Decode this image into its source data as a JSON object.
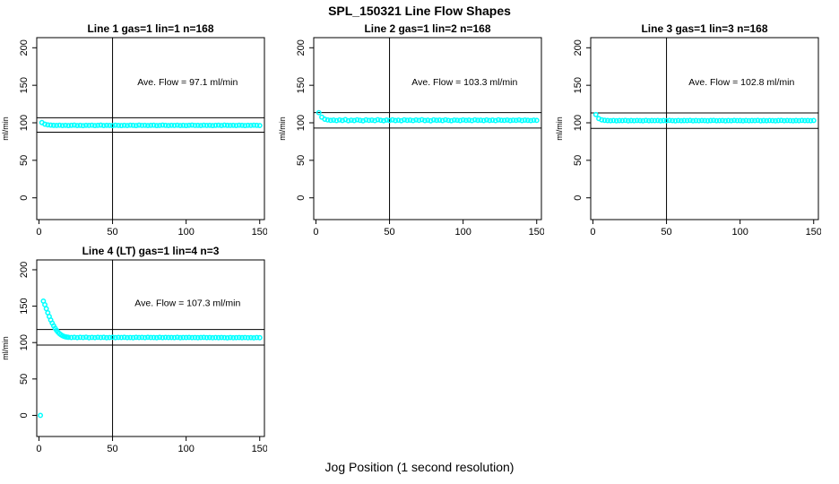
{
  "page": {
    "title": "SPL_150321  Line Flow Shapes",
    "xlabel": "Jog Position (1 second resolution)",
    "background_color": "#ffffff",
    "point_color": "#00ffff",
    "axis_color": "#000000"
  },
  "chart_data": [
    {
      "type": "scatter",
      "title": "Line 1 gas=1 lin=1 n=168",
      "annotation": "Ave. Flow =  97.1  ml/min",
      "ave_flow_ml_min": 97.1,
      "ylabel": "ml/min",
      "xlim": [
        0,
        150
      ],
      "ylim": [
        0,
        200
      ],
      "xticks": [
        0,
        50,
        100,
        150
      ],
      "yticks": [
        0,
        50,
        100,
        150,
        200
      ],
      "vline_x": 50,
      "hlines": [
        87.4,
        106.8
      ],
      "grid": false,
      "x": [
        2,
        4,
        6,
        8,
        10,
        12,
        14,
        16,
        18,
        20,
        22,
        24,
        26,
        28,
        30,
        32,
        34,
        36,
        38,
        40,
        42,
        44,
        46,
        48,
        50,
        52,
        54,
        56,
        58,
        60,
        62,
        64,
        66,
        68,
        70,
        72,
        74,
        76,
        78,
        80,
        82,
        84,
        86,
        88,
        90,
        92,
        94,
        96,
        98,
        100,
        102,
        104,
        106,
        108,
        110,
        112,
        114,
        116,
        118,
        120,
        122,
        124,
        126,
        128,
        130,
        132,
        134,
        136,
        138,
        140,
        142,
        144,
        146,
        148,
        150
      ],
      "y": [
        100.3,
        98.2,
        97.3,
        96.9,
        96.6,
        96.5,
        96.8,
        96.4,
        96.7,
        96.3,
        96.6,
        96.9,
        96.4,
        96.6,
        96.2,
        96.7,
        96.5,
        96.8,
        96.3,
        96.6,
        96.9,
        96.4,
        96.7,
        96.5,
        96.2,
        96.8,
        96.5,
        96.3,
        96.7,
        96.4,
        96.8,
        96.6,
        96.3,
        96.9,
        96.5,
        96.7,
        96.4,
        96.6,
        96.8,
        96.3,
        96.5,
        96.9,
        96.6,
        96.4,
        96.7,
        96.5,
        96.8,
        96.4,
        96.6,
        96.3,
        96.7,
        96.9,
        96.5,
        96.6,
        96.4,
        96.8,
        96.5,
        96.7,
        96.3,
        96.6,
        96.8,
        96.4,
        96.9,
        96.6,
        96.5,
        96.7,
        96.4,
        96.8,
        96.6,
        96.3,
        96.7,
        96.5,
        96.8,
        96.6,
        96.4
      ]
    },
    {
      "type": "scatter",
      "title": "Line 2 gas=1 lin=2 n=168",
      "annotation": "Ave. Flow =  103.3  ml/min",
      "ave_flow_ml_min": 103.3,
      "ylabel": "ml/min",
      "xlim": [
        0,
        150
      ],
      "ylim": [
        0,
        200
      ],
      "xticks": [
        0,
        50,
        100,
        150
      ],
      "yticks": [
        0,
        50,
        100,
        150,
        200
      ],
      "vline_x": 50,
      "hlines": [
        93.0,
        113.6
      ],
      "grid": false,
      "x": [
        2,
        4,
        6,
        8,
        10,
        12,
        14,
        16,
        18,
        20,
        22,
        24,
        26,
        28,
        30,
        32,
        34,
        36,
        38,
        40,
        42,
        44,
        46,
        48,
        50,
        52,
        54,
        56,
        58,
        60,
        62,
        64,
        66,
        68,
        70,
        72,
        74,
        76,
        78,
        80,
        82,
        84,
        86,
        88,
        90,
        92,
        94,
        96,
        98,
        100,
        102,
        104,
        106,
        108,
        110,
        112,
        114,
        116,
        118,
        120,
        122,
        124,
        126,
        128,
        130,
        132,
        134,
        136,
        138,
        140,
        142,
        144,
        146,
        148,
        150
      ],
      "y": [
        113.5,
        107.5,
        104.8,
        103.8,
        103.2,
        103.6,
        102.9,
        103.8,
        103.1,
        104.2,
        102.8,
        103.5,
        103.0,
        104.0,
        103.3,
        102.7,
        103.9,
        103.2,
        103.6,
        102.9,
        104.1,
        103.4,
        102.8,
        103.7,
        103.1,
        103.9,
        103.0,
        103.5,
        102.8,
        104.0,
        103.3,
        103.6,
        102.9,
        103.8,
        103.2,
        104.1,
        103.0,
        103.5,
        102.7,
        103.9,
        103.3,
        103.6,
        103.0,
        104.0,
        103.2,
        102.8,
        103.7,
        103.4,
        103.0,
        103.8,
        103.2,
        103.6,
        102.9,
        104.0,
        103.3,
        103.5,
        103.0,
        103.8,
        103.1,
        103.6,
        102.9,
        103.9,
        103.4,
        103.2,
        103.7,
        103.0,
        103.5,
        103.2,
        103.8,
        103.0,
        103.6,
        103.3,
        102.9,
        103.5,
        103.2
      ]
    },
    {
      "type": "scatter",
      "title": "Line 3 gas=1 lin=3 n=168",
      "annotation": "Ave. Flow =  102.8  ml/min",
      "ave_flow_ml_min": 102.8,
      "ylabel": "ml/min",
      "xlim": [
        0,
        150
      ],
      "ylim": [
        0,
        200
      ],
      "xticks": [
        0,
        50,
        100,
        150
      ],
      "yticks": [
        0,
        50,
        100,
        150,
        200
      ],
      "vline_x": 50,
      "hlines": [
        92.5,
        113.1
      ],
      "grid": false,
      "x": [
        2,
        4,
        6,
        8,
        10,
        12,
        14,
        16,
        18,
        20,
        22,
        24,
        26,
        28,
        30,
        32,
        34,
        36,
        38,
        40,
        42,
        44,
        46,
        48,
        50,
        52,
        54,
        56,
        58,
        60,
        62,
        64,
        66,
        68,
        70,
        72,
        74,
        76,
        78,
        80,
        82,
        84,
        86,
        88,
        90,
        92,
        94,
        96,
        98,
        100,
        102,
        104,
        106,
        108,
        110,
        112,
        114,
        116,
        118,
        120,
        122,
        124,
        126,
        128,
        130,
        132,
        134,
        136,
        138,
        140,
        142,
        144,
        146,
        148,
        150
      ],
      "y": [
        111.0,
        105.6,
        103.9,
        103.3,
        103.0,
        102.8,
        103.1,
        102.7,
        103.0,
        102.9,
        103.2,
        102.7,
        103.0,
        102.8,
        103.1,
        102.9,
        102.7,
        103.2,
        102.8,
        103.0,
        102.9,
        103.1,
        102.7,
        103.0,
        102.8,
        103.2,
        102.9,
        102.7,
        103.1,
        102.8,
        103.0,
        102.9,
        103.2,
        102.7,
        103.0,
        102.8,
        103.1,
        102.9,
        102.7,
        103.0,
        103.2,
        102.8,
        102.9,
        103.1,
        102.7,
        103.0,
        102.8,
        103.2,
        102.9,
        103.0,
        102.7,
        103.1,
        102.8,
        103.0,
        102.9,
        103.2,
        102.7,
        103.0,
        102.8,
        103.1,
        102.9,
        102.7,
        103.0,
        103.2,
        102.8,
        103.1,
        102.9,
        102.7,
        103.0,
        102.8,
        103.2,
        102.9,
        103.0,
        102.8,
        103.1
      ]
    },
    {
      "type": "scatter",
      "title": "Line 4 (LT) gas=1 lin=4 n=3",
      "annotation": "Ave. Flow =  107.3  ml/min",
      "ave_flow_ml_min": 107.3,
      "ylabel": "ml/min",
      "xlim": [
        0,
        150
      ],
      "ylim": [
        0,
        200
      ],
      "xticks": [
        0,
        50,
        100,
        150
      ],
      "yticks": [
        0,
        50,
        100,
        150,
        200
      ],
      "vline_x": 50,
      "hlines": [
        96.6,
        118.0
      ],
      "grid": false,
      "x": [
        1,
        3,
        4,
        5,
        6,
        7,
        8,
        9,
        10,
        11,
        12,
        13,
        14,
        15,
        16,
        17,
        18,
        19,
        20,
        22,
        24,
        26,
        28,
        30,
        32,
        34,
        36,
        38,
        40,
        42,
        44,
        46,
        48,
        50,
        52,
        54,
        56,
        58,
        60,
        62,
        64,
        66,
        68,
        70,
        72,
        74,
        76,
        78,
        80,
        82,
        84,
        86,
        88,
        90,
        92,
        94,
        96,
        98,
        100,
        102,
        104,
        106,
        108,
        110,
        112,
        114,
        116,
        118,
        120,
        122,
        124,
        126,
        128,
        130,
        132,
        134,
        136,
        138,
        140,
        142,
        144,
        146,
        148,
        150
      ],
      "y": [
        0,
        157,
        152,
        146.5,
        141,
        135.8,
        131,
        126.8,
        123,
        119.6,
        116.7,
        114.2,
        112.2,
        110.6,
        109.4,
        108.5,
        107.9,
        107.5,
        107.2,
        107.0,
        107.3,
        106.8,
        107.2,
        106.9,
        107.4,
        106.7,
        107.1,
        106.8,
        107.3,
        106.9,
        107.2,
        106.7,
        107.0,
        107.3,
        106.8,
        107.1,
        106.9,
        107.2,
        106.8,
        107.0,
        106.7,
        107.2,
        106.9,
        107.1,
        106.8,
        107.3,
        106.9,
        107.0,
        106.7,
        107.2,
        106.8,
        107.1,
        106.9,
        107.0,
        106.8,
        107.2,
        106.7,
        107.0,
        106.9,
        107.1,
        106.8,
        107.0,
        106.7,
        106.9,
        107.1,
        106.8,
        107.0,
        106.6,
        106.9,
        106.7,
        107.0,
        106.8,
        106.5,
        106.9,
        106.6,
        106.8,
        107.0,
        106.7,
        106.9,
        106.6,
        106.8,
        106.5,
        106.9,
        106.7
      ]
    }
  ]
}
